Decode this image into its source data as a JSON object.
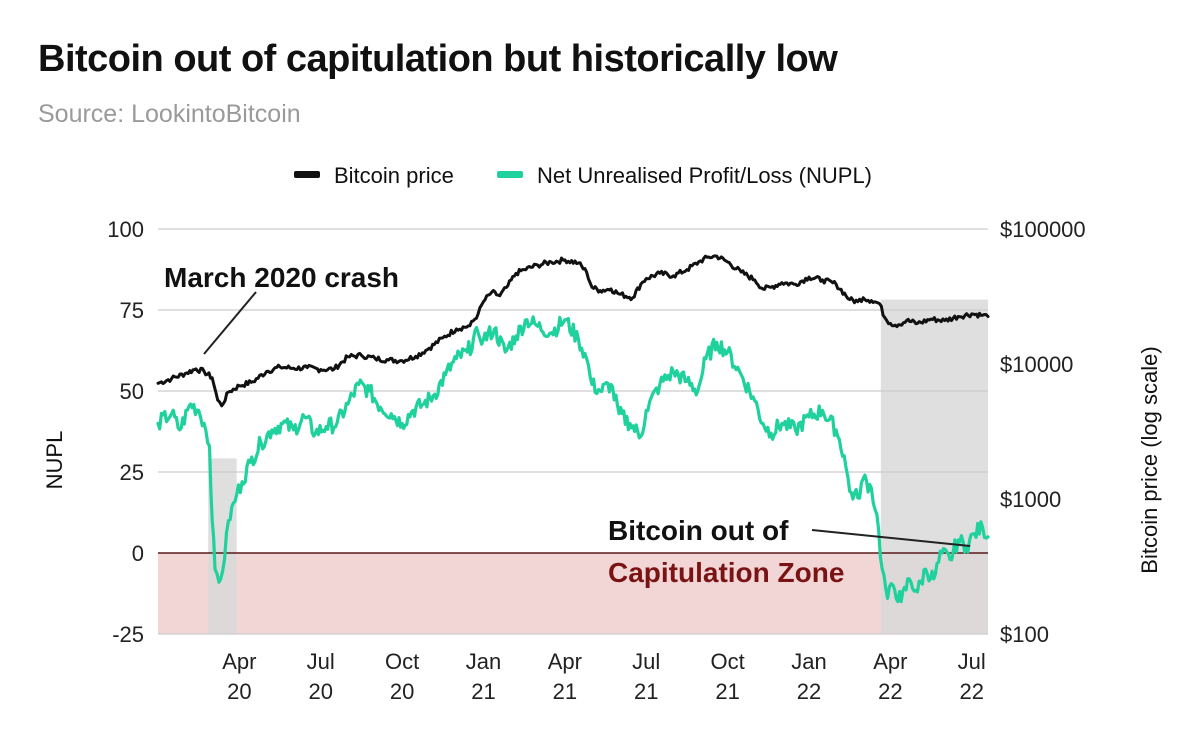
{
  "title": "Bitcoin out of capitulation but historically low",
  "subtitle": "Source: LookintoBitcoin",
  "colors": {
    "price": "#111111",
    "nupl": "#1fd19c",
    "capitulation_zone": "#f2d6d6",
    "zero_line": "#5a1a1a",
    "highlight": "#d9d9d9",
    "grid": "#cccccc"
  },
  "chart_data": {
    "type": "line",
    "title": "Bitcoin out of capitulation but historically low",
    "legend": {
      "position": "top-center",
      "entries": [
        "Bitcoin price",
        "Net Unrealised Profit/Loss (NUPL)"
      ]
    },
    "xlabel": "",
    "ylabel_left": "NUPL",
    "ylabel_right": "Bitcoin price (log scale)",
    "ylim_left": [
      -25,
      100
    ],
    "yticks_left": [
      "100",
      "75",
      "50",
      "25",
      "0",
      "-25"
    ],
    "ylim_right": [
      100,
      100000
    ],
    "yticks_right": [
      "$100000",
      "$10000",
      "$1000",
      "$100"
    ],
    "xticks": [
      {
        "month": "Apr",
        "year": "20",
        "date": "2020-04"
      },
      {
        "month": "Jul",
        "year": "20",
        "date": "2020-07"
      },
      {
        "month": "Oct",
        "year": "20",
        "date": "2020-10"
      },
      {
        "month": "Jan",
        "year": "21",
        "date": "2021-01"
      },
      {
        "month": "Apr",
        "year": "21",
        "date": "2021-04"
      },
      {
        "month": "Jul",
        "year": "21",
        "date": "2021-07"
      },
      {
        "month": "Oct",
        "year": "21",
        "date": "2021-10"
      },
      {
        "month": "Jan",
        "year": "22",
        "date": "2022-01"
      },
      {
        "month": "Apr",
        "year": "22",
        "date": "2022-04"
      },
      {
        "month": "Jul",
        "year": "22",
        "date": "2022-07"
      }
    ],
    "x_range_months": [
      0,
      30.6
    ],
    "x_origin": "2020-01",
    "series": [
      {
        "name": "Bitcoin price",
        "axis": "right",
        "points": [
          [
            0,
            7200
          ],
          [
            0.5,
            7800
          ],
          [
            1,
            8500
          ],
          [
            1.4,
            9200
          ],
          [
            1.7,
            8800
          ],
          [
            2.0,
            7900
          ],
          [
            2.2,
            5400
          ],
          [
            2.35,
            4900
          ],
          [
            2.6,
            6200
          ],
          [
            3.0,
            6900
          ],
          [
            3.5,
            7400
          ],
          [
            4.0,
            8800
          ],
          [
            4.5,
            9500
          ],
          [
            5.0,
            9300
          ],
          [
            5.5,
            9400
          ],
          [
            6.0,
            9100
          ],
          [
            6.5,
            9200
          ],
          [
            7.0,
            11300
          ],
          [
            7.5,
            11600
          ],
          [
            8.0,
            11000
          ],
          [
            8.5,
            10700
          ],
          [
            9.0,
            10600
          ],
          [
            9.5,
            11400
          ],
          [
            10.0,
            13100
          ],
          [
            10.5,
            15600
          ],
          [
            11.0,
            18200
          ],
          [
            11.5,
            19200
          ],
          [
            11.8,
            23500
          ],
          [
            12.0,
            29000
          ],
          [
            12.3,
            34000
          ],
          [
            12.6,
            32000
          ],
          [
            12.9,
            38000
          ],
          [
            13.2,
            47000
          ],
          [
            13.5,
            50000
          ],
          [
            14.0,
            54000
          ],
          [
            14.5,
            57000
          ],
          [
            15.0,
            59000
          ],
          [
            15.5,
            56000
          ],
          [
            15.8,
            48000
          ],
          [
            16.0,
            37000
          ],
          [
            16.3,
            35000
          ],
          [
            16.7,
            36000
          ],
          [
            17.0,
            33000
          ],
          [
            17.5,
            31000
          ],
          [
            17.8,
            39000
          ],
          [
            18.0,
            43000
          ],
          [
            18.5,
            47000
          ],
          [
            19.0,
            45000
          ],
          [
            19.5,
            50000
          ],
          [
            20.0,
            58000
          ],
          [
            20.3,
            62000
          ],
          [
            20.6,
            63000
          ],
          [
            21.0,
            57000
          ],
          [
            21.5,
            48000
          ],
          [
            22.0,
            42000
          ],
          [
            22.3,
            36000
          ],
          [
            22.6,
            37000
          ],
          [
            23.0,
            40000
          ],
          [
            23.5,
            39000
          ],
          [
            24.0,
            44000
          ],
          [
            24.5,
            42000
          ],
          [
            25.0,
            39000
          ],
          [
            25.5,
            30000
          ],
          [
            25.8,
            29000
          ],
          [
            26.0,
            31000
          ],
          [
            26.3,
            29500
          ],
          [
            26.6,
            28000
          ],
          [
            26.8,
            22000
          ],
          [
            27.0,
            20000
          ],
          [
            27.3,
            19500
          ],
          [
            27.6,
            21000
          ],
          [
            28.0,
            20000
          ],
          [
            28.5,
            21500
          ],
          [
            29.0,
            21000
          ],
          [
            29.5,
            22500
          ],
          [
            30.0,
            23500
          ],
          [
            30.4,
            23000
          ],
          [
            30.6,
            22500
          ]
        ]
      },
      {
        "name": "Net Unrealised Profit/Loss (NUPL)",
        "axis": "left",
        "points": [
          [
            0,
            40
          ],
          [
            0.5,
            43
          ],
          [
            0.8,
            38
          ],
          [
            1.2,
            46
          ],
          [
            1.5,
            44
          ],
          [
            1.7,
            40
          ],
          [
            1.9,
            33
          ],
          [
            2.0,
            10
          ],
          [
            2.1,
            -5
          ],
          [
            2.25,
            -9
          ],
          [
            2.45,
            -2
          ],
          [
            2.6,
            10
          ],
          [
            2.9,
            18
          ],
          [
            3.1,
            22
          ],
          [
            3.4,
            28
          ],
          [
            3.8,
            34
          ],
          [
            4.2,
            38
          ],
          [
            4.6,
            40
          ],
          [
            5.0,
            38
          ],
          [
            5.4,
            42
          ],
          [
            5.8,
            37
          ],
          [
            6.2,
            39
          ],
          [
            6.6,
            40
          ],
          [
            7.0,
            46
          ],
          [
            7.4,
            52
          ],
          [
            7.8,
            50
          ],
          [
            8.2,
            45
          ],
          [
            8.6,
            43
          ],
          [
            9.0,
            40
          ],
          [
            9.4,
            44
          ],
          [
            9.8,
            46
          ],
          [
            10.2,
            49
          ],
          [
            10.6,
            55
          ],
          [
            11.0,
            60
          ],
          [
            11.4,
            62
          ],
          [
            11.8,
            68
          ],
          [
            12.0,
            66
          ],
          [
            12.4,
            69
          ],
          [
            12.8,
            62
          ],
          [
            13.2,
            67
          ],
          [
            13.6,
            72
          ],
          [
            14.0,
            70
          ],
          [
            14.5,
            68
          ],
          [
            15.0,
            72
          ],
          [
            15.5,
            66
          ],
          [
            15.8,
            60
          ],
          [
            16.0,
            52
          ],
          [
            16.3,
            50
          ],
          [
            16.7,
            52
          ],
          [
            17.0,
            43
          ],
          [
            17.4,
            40
          ],
          [
            17.8,
            36
          ],
          [
            18.0,
            44
          ],
          [
            18.5,
            52
          ],
          [
            19.0,
            56
          ],
          [
            19.5,
            53
          ],
          [
            19.9,
            50
          ],
          [
            20.2,
            60
          ],
          [
            20.6,
            65
          ],
          [
            21.0,
            62
          ],
          [
            21.5,
            55
          ],
          [
            22.0,
            47
          ],
          [
            22.3,
            40
          ],
          [
            22.6,
            37
          ],
          [
            23.0,
            40
          ],
          [
            23.5,
            38
          ],
          [
            24.0,
            42
          ],
          [
            24.5,
            44
          ],
          [
            25.0,
            38
          ],
          [
            25.3,
            30
          ],
          [
            25.5,
            19
          ],
          [
            25.8,
            17
          ],
          [
            26.0,
            23
          ],
          [
            26.3,
            20
          ],
          [
            26.5,
            12
          ],
          [
            26.7,
            -5
          ],
          [
            26.9,
            -14
          ],
          [
            27.1,
            -10
          ],
          [
            27.4,
            -15
          ],
          [
            27.7,
            -8
          ],
          [
            28.0,
            -12
          ],
          [
            28.3,
            -5
          ],
          [
            28.6,
            -8
          ],
          [
            28.9,
            0
          ],
          [
            29.2,
            -2
          ],
          [
            29.5,
            4
          ],
          [
            29.8,
            2
          ],
          [
            30.1,
            6
          ],
          [
            30.4,
            8
          ],
          [
            30.6,
            5
          ]
        ]
      }
    ],
    "zones": [
      {
        "name": "Capitulation Zone",
        "from": 0,
        "to": -25,
        "axis": "left"
      }
    ],
    "highlight_bands": [
      {
        "from": 1.85,
        "to": 2.9,
        "top": 2000
      },
      {
        "from": 26.65,
        "to": 30.6,
        "top": 30000
      }
    ],
    "annotations": [
      {
        "text": "March 2020 crash",
        "points_to": [
          2.0,
          9000
        ]
      },
      {
        "line1": "Bitcoin out of",
        "line2": "Capitulation Zone",
        "points_to": [
          29.8,
          3
        ]
      }
    ]
  }
}
